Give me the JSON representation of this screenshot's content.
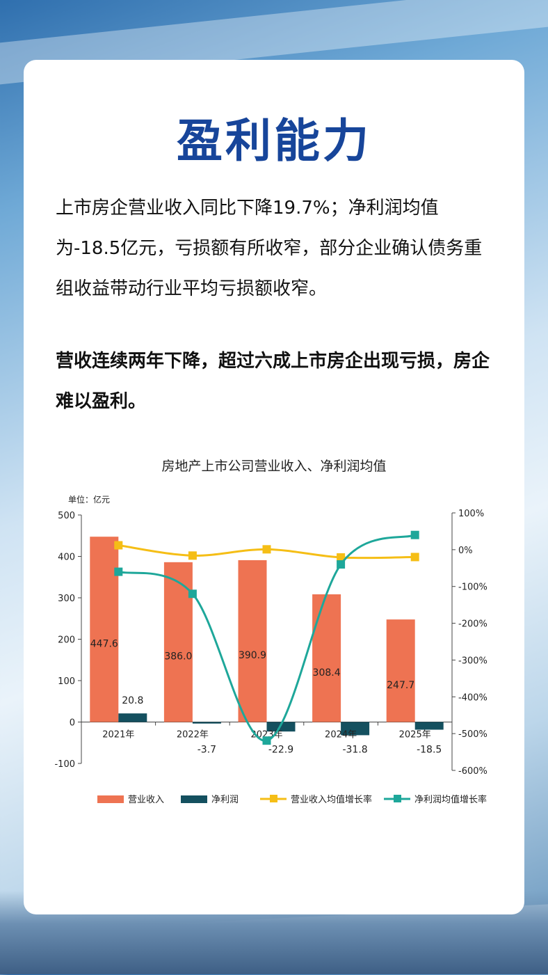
{
  "page": {
    "title": "盈利能力",
    "paragraph1": "上市房企营业收入同比下降19.7%；净利润均值为-18.5亿元，亏损额有所收窄，部分企业确认债务重组收益带动行业平均亏损额收窄。",
    "paragraph2": "营收连续两年下降，超过六成上市房企出现亏损，房企难以盈利。"
  },
  "chart_data": {
    "type": "bar",
    "title": "房地产上市公司营业收入、净利润均值",
    "unit_label": "单位：亿元",
    "categories": [
      "2021年",
      "2022年",
      "2023年",
      "2024年",
      "2025年"
    ],
    "series": [
      {
        "name": "营业收入",
        "kind": "bar",
        "axis": "left",
        "color": "#ee7352",
        "values": [
          447.6,
          386.0,
          390.9,
          308.4,
          247.7
        ],
        "labels": [
          "447.6",
          "386.0",
          "390.9",
          "308.4",
          "247.7"
        ]
      },
      {
        "name": "净利润",
        "kind": "bar",
        "axis": "left",
        "color": "#14505f",
        "values": [
          20.8,
          -3.7,
          -22.9,
          -31.8,
          -18.5
        ],
        "labels": [
          "20.8",
          "-3.7",
          "-22.9",
          "-31.8",
          "-18.5"
        ]
      },
      {
        "name": "营业收入均值增长率",
        "kind": "line",
        "axis": "right",
        "color": "#f5be16",
        "values": [
          12,
          -16,
          1,
          -21,
          -20
        ]
      },
      {
        "name": "净利润均值增长率",
        "kind": "line",
        "axis": "right",
        "color": "#1ea79a",
        "values": [
          -60,
          -120,
          -519,
          -40,
          40
        ]
      }
    ],
    "ylim_left": [
      -100,
      500
    ],
    "yticks_left": [
      -100,
      0,
      100,
      200,
      300,
      400,
      500
    ],
    "ylim_right": [
      -600,
      100
    ],
    "yticks_right_labels": [
      "100%",
      "0%",
      "-100%",
      "-200%",
      "-300%",
      "-400%",
      "-500%",
      "-600%"
    ],
    "legend_position": "bottom"
  },
  "colors": {
    "title": "#17459a",
    "revenue_bar": "#ee7352",
    "profit_bar": "#14505f",
    "revenue_growth_line": "#f5be16",
    "profit_growth_line": "#1ea79a"
  }
}
